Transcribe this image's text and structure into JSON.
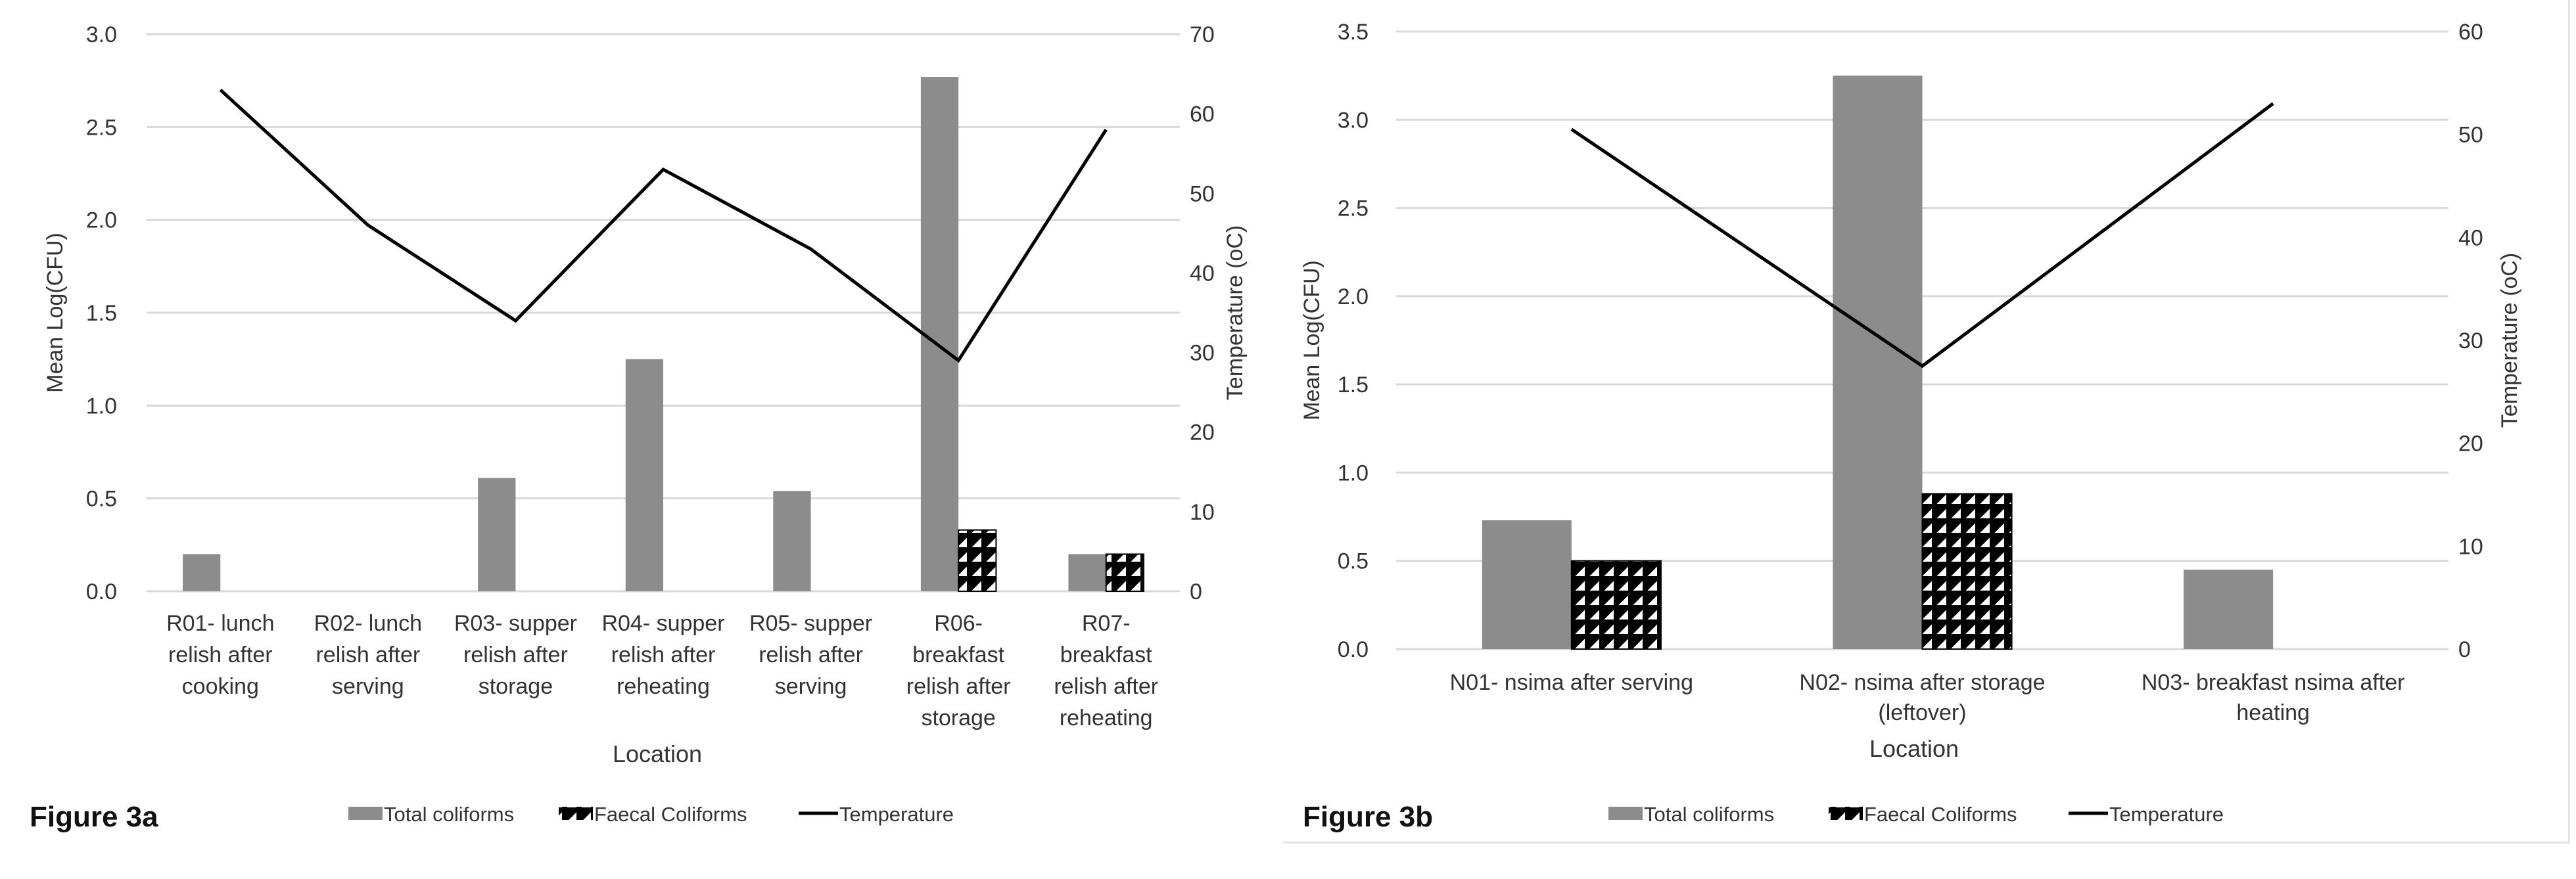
{
  "chart_data": [
    {
      "type": "bar",
      "figure_label": "Figure 3a",
      "xlabel": "Location",
      "ylabel": "Mean Log(CFU)",
      "y2label": "Temperature (oC)",
      "ylim": [
        0,
        3.0
      ],
      "y2lim": [
        0,
        70
      ],
      "yticks": [
        "0.0",
        "0.5",
        "1.0",
        "1.5",
        "2.0",
        "2.5",
        "3.0"
      ],
      "y2ticks": [
        "0",
        "10",
        "20",
        "30",
        "40",
        "50",
        "60",
        "70"
      ],
      "categories": [
        [
          "R01- lunch",
          "relish after",
          "cooking"
        ],
        [
          "R02- lunch",
          "relish after",
          "serving"
        ],
        [
          "R03- supper",
          "relish after",
          "storage"
        ],
        [
          "R04- supper",
          "relish after",
          "reheating"
        ],
        [
          "R05- supper",
          "relish after",
          "serving"
        ],
        [
          "R06-",
          "breakfast",
          "relish after",
          "storage"
        ],
        [
          "R07-",
          "breakfast",
          "relish after",
          "reheating"
        ]
      ],
      "series": [
        {
          "name": "Total coliforms",
          "kind": "bar",
          "color": "#8c8c8c",
          "values": [
            0.2,
            0,
            0.61,
            1.25,
            0.54,
            2.77,
            0.2
          ]
        },
        {
          "name": "Faecal Coliforms",
          "kind": "bar-pattern",
          "color": "#000000",
          "values": [
            0,
            0,
            0,
            0,
            0,
            0.33,
            0.2
          ]
        },
        {
          "name": "Temperature",
          "kind": "line",
          "axis": "right",
          "color": "#000000",
          "values": [
            63,
            46,
            34,
            53,
            43,
            29,
            58
          ]
        }
      ],
      "legend_position": "bottom"
    },
    {
      "type": "bar",
      "figure_label": "Figure 3b",
      "xlabel": "Location",
      "ylabel": "Mean Log(CFU)",
      "y2label": "Temperature (oC)",
      "ylim": [
        0,
        3.5
      ],
      "y2lim": [
        0,
        60
      ],
      "yticks": [
        "0.0",
        "0.5",
        "1.0",
        "1.5",
        "2.0",
        "2.5",
        "3.0",
        "3.5"
      ],
      "y2ticks": [
        "0",
        "10",
        "20",
        "30",
        "40",
        "50",
        "60"
      ],
      "categories": [
        [
          "N01- nsima after serving"
        ],
        [
          "N02- nsima after storage",
          "(leftover)"
        ],
        [
          "N03- breakfast nsima after",
          "heating"
        ]
      ],
      "series": [
        {
          "name": "Total coliforms",
          "kind": "bar",
          "color": "#8c8c8c",
          "values": [
            0.73,
            3.25,
            0.45
          ]
        },
        {
          "name": "Faecal Coliforms",
          "kind": "bar-pattern",
          "color": "#000000",
          "values": [
            0.5,
            0.88,
            0
          ]
        },
        {
          "name": "Temperature",
          "kind": "line",
          "axis": "right",
          "color": "#000000",
          "values": [
            50.5,
            27.5,
            53
          ]
        }
      ],
      "legend_position": "bottom"
    }
  ]
}
